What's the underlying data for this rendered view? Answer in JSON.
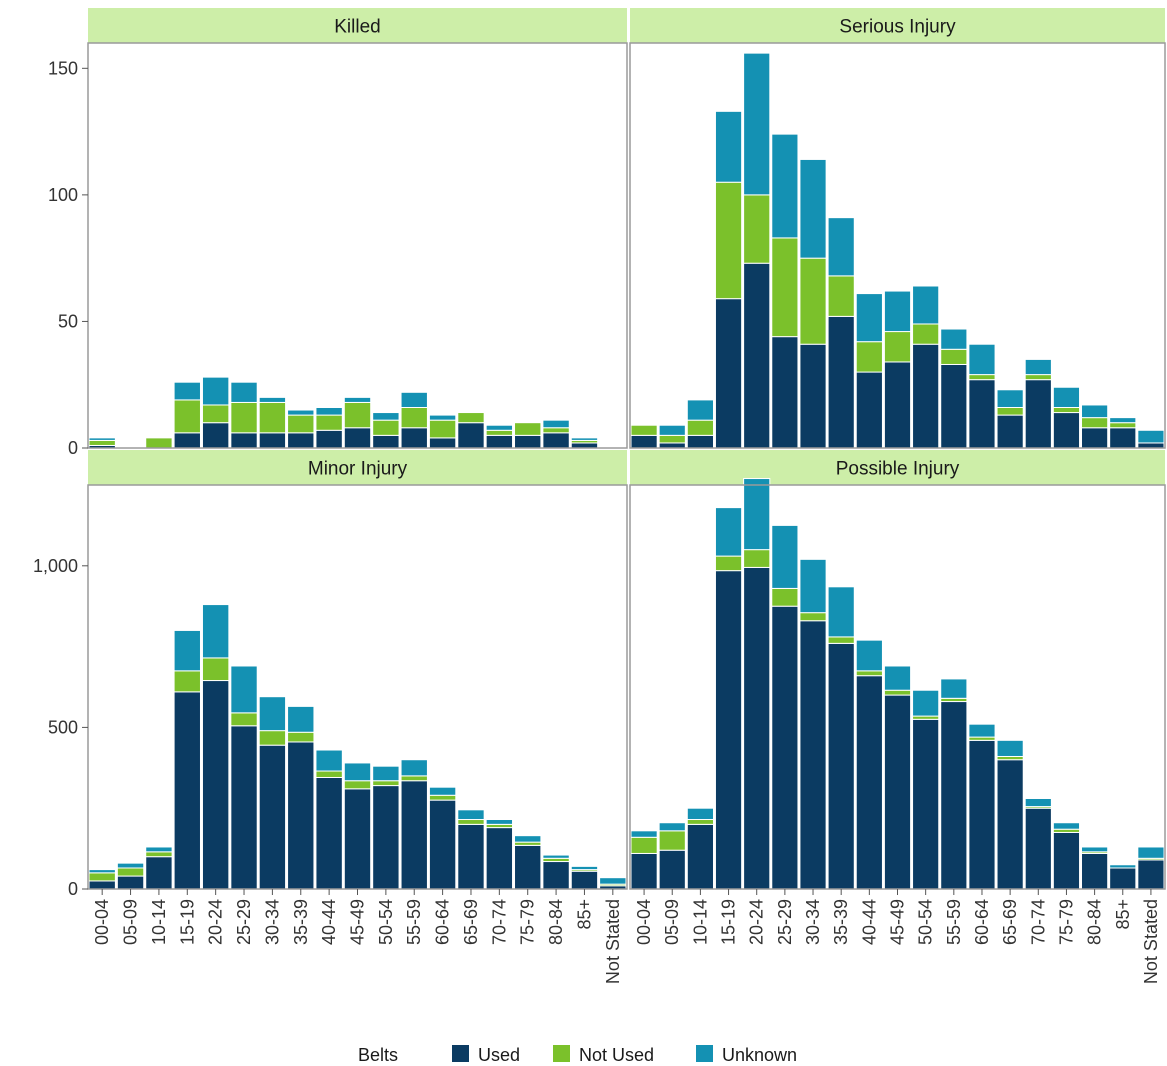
{
  "chart_data": {
    "type": "bar",
    "stacked": true,
    "facet_order": [
      "Killed",
      "Serious Injury",
      "Minor Injury",
      "Possible Injury"
    ],
    "categories": [
      "00-04",
      "05-09",
      "10-14",
      "15-19",
      "20-24",
      "25-29",
      "30-34",
      "35-39",
      "40-44",
      "45-49",
      "50-54",
      "55-59",
      "60-64",
      "65-69",
      "70-74",
      "75-79",
      "80-84",
      "85+",
      "Not Stated"
    ],
    "legend": {
      "title": "Belts",
      "position": "bottom"
    },
    "series_colors": {
      "Used": "#0b3b62",
      "Not Used": "#7bc12b",
      "Unknown": "#1491b3"
    },
    "strip_color": "#cdeea8",
    "rows": [
      {
        "ylim": [
          0,
          160
        ],
        "yticks": [
          0,
          50,
          100,
          150
        ],
        "tick_labels": [
          "0",
          "50",
          "100",
          "150"
        ]
      },
      {
        "ylim": [
          0,
          1250
        ],
        "yticks": [
          0,
          500,
          1000
        ],
        "tick_labels": [
          "0",
          "500",
          "1,000"
        ]
      }
    ],
    "facets": [
      {
        "title": "Killed",
        "series": [
          {
            "name": "Used",
            "values": [
              1,
              0,
              0,
              6,
              10,
              6,
              6,
              6,
              7,
              8,
              5,
              8,
              4,
              10,
              5,
              5,
              6,
              2,
              0
            ]
          },
          {
            "name": "Not Used",
            "values": [
              2,
              0,
              4,
              13,
              7,
              12,
              12,
              7,
              6,
              10,
              6,
              8,
              7,
              4,
              2,
              5,
              2,
              1,
              0
            ]
          },
          {
            "name": "Unknown",
            "values": [
              1,
              0,
              0,
              7,
              11,
              8,
              2,
              2,
              3,
              2,
              3,
              6,
              2,
              0,
              2,
              0,
              3,
              1,
              0
            ]
          }
        ]
      },
      {
        "title": "Serious Injury",
        "series": [
          {
            "name": "Used",
            "values": [
              5,
              2,
              5,
              59,
              73,
              44,
              41,
              52,
              30,
              34,
              41,
              33,
              27,
              13,
              27,
              14,
              8,
              8,
              2
            ]
          },
          {
            "name": "Not Used",
            "values": [
              4,
              3,
              6,
              46,
              27,
              39,
              34,
              16,
              12,
              12,
              8,
              6,
              2,
              3,
              2,
              2,
              4,
              2,
              0
            ]
          },
          {
            "name": "Unknown",
            "values": [
              0,
              4,
              8,
              28,
              56,
              41,
              39,
              23,
              19,
              16,
              15,
              8,
              12,
              7,
              6,
              8,
              5,
              2,
              5
            ]
          }
        ]
      },
      {
        "title": "Minor Injury",
        "series": [
          {
            "name": "Used",
            "values": [
              25,
              40,
              100,
              610,
              645,
              505,
              445,
              455,
              345,
              310,
              320,
              335,
              275,
              200,
              190,
              135,
              85,
              55,
              10
            ]
          },
          {
            "name": "Not Used",
            "values": [
              25,
              25,
              15,
              65,
              70,
              40,
              45,
              30,
              20,
              25,
              15,
              15,
              15,
              15,
              10,
              10,
              10,
              5,
              5
            ]
          },
          {
            "name": "Unknown",
            "values": [
              10,
              15,
              15,
              125,
              165,
              145,
              105,
              80,
              65,
              55,
              45,
              50,
              25,
              30,
              15,
              20,
              10,
              10,
              20
            ]
          }
        ]
      },
      {
        "title": "Possible Injury",
        "series": [
          {
            "name": "Used",
            "values": [
              110,
              120,
              200,
              985,
              995,
              875,
              830,
              760,
              660,
              600,
              525,
              580,
              460,
              400,
              250,
              175,
              110,
              65,
              90
            ]
          },
          {
            "name": "Not Used",
            "values": [
              50,
              60,
              15,
              45,
              55,
              55,
              25,
              20,
              15,
              15,
              10,
              10,
              10,
              10,
              5,
              10,
              5,
              0,
              5
            ]
          },
          {
            "name": "Unknown",
            "values": [
              20,
              25,
              35,
              150,
              220,
              195,
              165,
              155,
              95,
              75,
              80,
              60,
              40,
              50,
              25,
              20,
              15,
              10,
              35
            ]
          }
        ]
      }
    ]
  }
}
